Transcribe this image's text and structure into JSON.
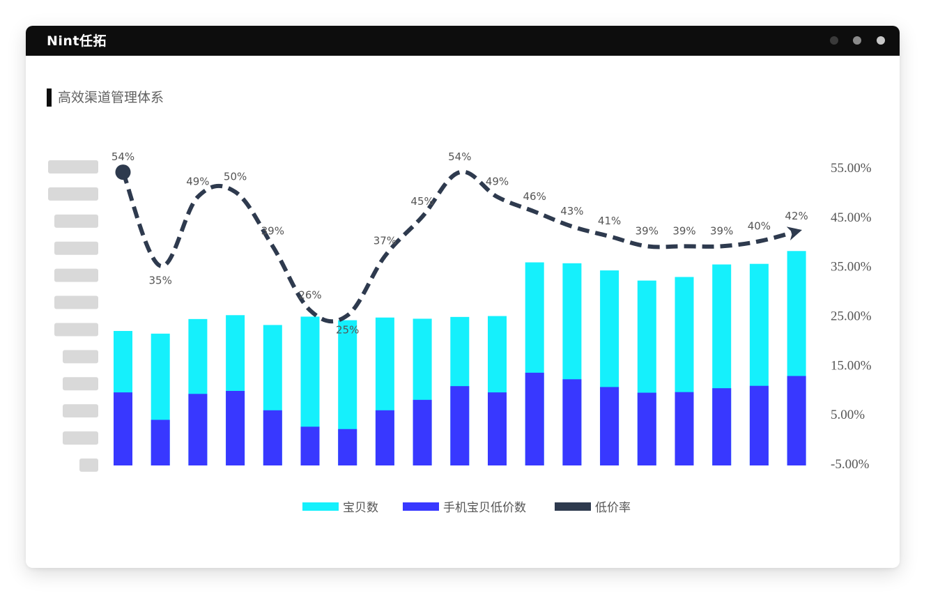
{
  "window": {
    "logo": "Nint任拓",
    "heading": "高效渠道管理体系"
  },
  "colors": {
    "total": "#15f0fc",
    "lowprice": "#3838ff",
    "rate": "#2e3a4e",
    "placeholder": "#d9d9d9"
  },
  "chart_data": {
    "type": "bar",
    "stacked": "overlay",
    "title": "",
    "xlabel": "",
    "ylabel": "",
    "left_axis_labels_hidden": true,
    "left_axis_placeholder_count": 12,
    "y2lim": [
      -5,
      55
    ],
    "y2ticks": [
      "55.00%",
      "45.00%",
      "35.00%",
      "25.00%",
      "15.00%",
      "5.00%",
      "-5.00%"
    ],
    "series": [
      {
        "name": "宝贝数",
        "kind": "bar",
        "relative_values": [
          0.451,
          0.442,
          0.491,
          0.504,
          0.471,
          0.499,
          0.487,
          0.496,
          0.492,
          0.498,
          0.501,
          0.681,
          0.678,
          0.654,
          0.62,
          0.632,
          0.674,
          0.676,
          0.719
        ]
      },
      {
        "name": "手机宝贝低价数",
        "kind": "bar",
        "relative_values": [
          0.245,
          0.153,
          0.24,
          0.25,
          0.185,
          0.13,
          0.122,
          0.185,
          0.22,
          0.266,
          0.245,
          0.311,
          0.289,
          0.263,
          0.244,
          0.246,
          0.259,
          0.267,
          0.3
        ]
      },
      {
        "name": "低价率",
        "kind": "line",
        "axis": "right",
        "unit": "%",
        "values": [
          54,
          35,
          49,
          50,
          39,
          26,
          25,
          37,
          45,
          54,
          49,
          46,
          43,
          41,
          39,
          39,
          39,
          40,
          42
        ],
        "labels": [
          "54%",
          "35%",
          "49%",
          "50%",
          "39%",
          "26%",
          "25%",
          "37%",
          "45%",
          "54%",
          "49%",
          "46%",
          "43%",
          "41%",
          "39%",
          "39%",
          "39%",
          "40%",
          "42%"
        ]
      }
    ],
    "legend": {
      "position": "bottom-center",
      "items": [
        "宝贝数",
        "手机宝贝低价数",
        "低价率"
      ]
    },
    "grid": false
  }
}
